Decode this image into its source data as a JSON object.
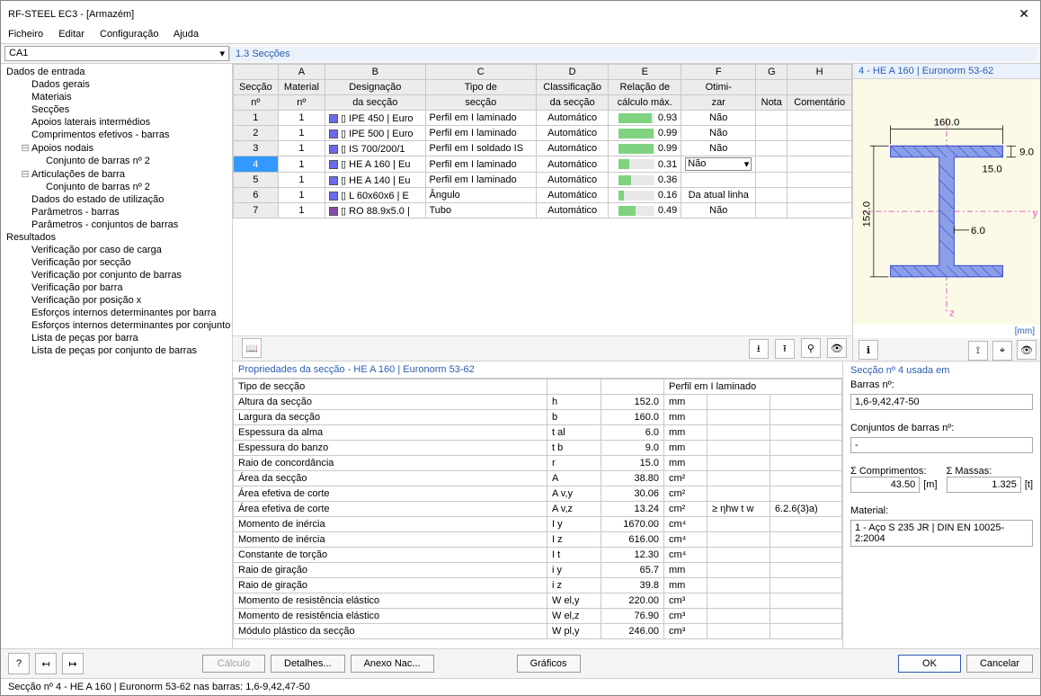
{
  "window": {
    "title": "RF-STEEL EC3 - [Armazém]"
  },
  "menu": [
    "Ficheiro",
    "Editar",
    "Configuração",
    "Ajuda"
  ],
  "case_combo": "CA1",
  "panel_title": "1.3 Secções",
  "tree": [
    {
      "t": "Dados de entrada",
      "lvl": 0
    },
    {
      "t": "Dados gerais",
      "lvl": 1
    },
    {
      "t": "Materiais",
      "lvl": 1
    },
    {
      "t": "Secções",
      "lvl": 1
    },
    {
      "t": "Apoios laterais intermédios",
      "lvl": 1
    },
    {
      "t": "Comprimentos efetivos - barras",
      "lvl": 1
    },
    {
      "t": "Apoios nodais",
      "lvl": 1,
      "exp": "−"
    },
    {
      "t": "Conjunto de barras nº 2",
      "lvl": 2
    },
    {
      "t": "Articulações de barra",
      "lvl": 1,
      "exp": "−"
    },
    {
      "t": "Conjunto de barras nº 2",
      "lvl": 2
    },
    {
      "t": "Dados do estado de utilização",
      "lvl": 1
    },
    {
      "t": "Parâmetros - barras",
      "lvl": 1
    },
    {
      "t": "Parâmetros - conjuntos de barras",
      "lvl": 1
    },
    {
      "t": "Resultados",
      "lvl": 0
    },
    {
      "t": "Verificação por caso de carga",
      "lvl": 1
    },
    {
      "t": "Verificação por secção",
      "lvl": 1
    },
    {
      "t": "Verificação por conjunto de barras",
      "lvl": 1
    },
    {
      "t": "Verificação por barra",
      "lvl": 1
    },
    {
      "t": "Verificação por posição x",
      "lvl": 1
    },
    {
      "t": "Esforços internos determinantes por barra",
      "lvl": 1
    },
    {
      "t": "Esforços internos determinantes por conjunto",
      "lvl": 1
    },
    {
      "t": "Lista de peças por barra",
      "lvl": 1
    },
    {
      "t": "Lista de peças por conjunto de barras",
      "lvl": 1
    }
  ],
  "grid": {
    "col_letters": [
      "A",
      "B",
      "C",
      "D",
      "E",
      "F",
      "G",
      "H"
    ],
    "head1": [
      "Secção",
      "Material",
      "Designação",
      "Tipo de",
      "Classificação",
      "Relação de",
      "Otimi-",
      "",
      ""
    ],
    "head2": [
      "nº",
      "nº",
      "da secção",
      "secção",
      "da secção",
      "cálculo máx.",
      "zar",
      "Nota",
      "Comentário"
    ],
    "rows": [
      {
        "n": 1,
        "mat": 1,
        "sw": "#6a6af0",
        "desig": "IPE 450 | Euro",
        "tipo": "Perfil em I laminado",
        "cls": "Automático",
        "ratio": 0.93,
        "opt": "Não"
      },
      {
        "n": 2,
        "mat": 1,
        "sw": "#6a6af0",
        "desig": "IPE 500 | Euro",
        "tipo": "Perfil em I laminado",
        "cls": "Automático",
        "ratio": 0.99,
        "opt": "Não"
      },
      {
        "n": 3,
        "mat": 1,
        "sw": "#6a6af0",
        "desig": "IS 700/200/1",
        "tipo": "Perfil em I soldado IS",
        "cls": "Automático",
        "ratio": 0.99,
        "opt": "Não"
      },
      {
        "n": 4,
        "mat": 1,
        "sw": "#6a6af0",
        "desig": "HE A 160 | Eu",
        "tipo": "Perfil em I laminado",
        "cls": "Automático",
        "ratio": 0.31,
        "opt": "Não",
        "sel": true,
        "dd": true
      },
      {
        "n": 5,
        "mat": 1,
        "sw": "#6a6af0",
        "desig": "HE A 140 | Eu",
        "tipo": "Perfil em I laminado",
        "cls": "Automático",
        "ratio": 0.36,
        "opt": "Não",
        "hl": true
      },
      {
        "n": 6,
        "mat": 1,
        "sw": "#6a6af0",
        "desig": "L 60x60x6 | E",
        "tipo": "Ângulo",
        "cls": "Automático",
        "ratio": 0.16,
        "opt": "Da atual linha"
      },
      {
        "n": 7,
        "mat": 1,
        "sw": "#8a4aa8",
        "desig": "RO 88.9x5.0 |",
        "tipo": "Tubo",
        "cls": "Automático",
        "ratio": 0.49,
        "opt": "Não"
      }
    ]
  },
  "preview": {
    "title": "4 - HE A 160 | Euronorm 53-62",
    "unit": "[mm]",
    "dims": {
      "b": "160.0",
      "h": "152.0",
      "tf": "9.0",
      "tw": "6.0",
      "r": "15.0"
    },
    "colors": {
      "fill": "#8a9fe8",
      "hatch": "#3a4bd0",
      "axis": "#e460c8",
      "bg": "#fbfae6"
    }
  },
  "props": {
    "title": "Propriedades da secção  -  HE A 160 | Euronorm 53-62",
    "rows": [
      {
        "n": "Tipo de secção",
        "s": "",
        "v": "",
        "u": "",
        "x1": "Perfil em I laminado",
        "x2": "",
        "span": true
      },
      {
        "n": "Altura da secção",
        "s": "h",
        "v": "152.0",
        "u": "mm"
      },
      {
        "n": "Largura da secção",
        "s": "b",
        "v": "160.0",
        "u": "mm"
      },
      {
        "n": "Espessura da alma",
        "s": "t al",
        "v": "6.0",
        "u": "mm"
      },
      {
        "n": "Espessura do banzo",
        "s": "t b",
        "v": "9.0",
        "u": "mm"
      },
      {
        "n": "Raio de concordância",
        "s": "r",
        "v": "15.0",
        "u": "mm"
      },
      {
        "n": "Área da secção",
        "s": "A",
        "v": "38.80",
        "u": "cm²"
      },
      {
        "n": "Área efetiva de corte",
        "s": "A v,y",
        "v": "30.06",
        "u": "cm²"
      },
      {
        "n": "Área efetiva de corte",
        "s": "A v,z",
        "v": "13.24",
        "u": "cm²",
        "x1": "≥ ηhw t w",
        "x2": "6.2.6(3)a)"
      },
      {
        "n": "Momento de inércia",
        "s": "I y",
        "v": "1670.00",
        "u": "cm⁴"
      },
      {
        "n": "Momento de inércia",
        "s": "I z",
        "v": "616.00",
        "u": "cm⁴"
      },
      {
        "n": "Constante de torção",
        "s": "I t",
        "v": "12.30",
        "u": "cm⁴"
      },
      {
        "n": "Raio de giração",
        "s": "i y",
        "v": "65.7",
        "u": "mm"
      },
      {
        "n": "Raio de giração",
        "s": "i z",
        "v": "39.8",
        "u": "mm"
      },
      {
        "n": "Momento de resistência elástico",
        "s": "W el,y",
        "v": "220.00",
        "u": "cm³"
      },
      {
        "n": "Momento de resistência elástico",
        "s": "W el,z",
        "v": "76.90",
        "u": "cm³"
      },
      {
        "n": "Módulo plástico da secção",
        "s": "W pl,y",
        "v": "246.00",
        "u": "cm³"
      }
    ]
  },
  "used": {
    "title": "Secção nº 4 usada em",
    "barras_lab": "Barras nº:",
    "barras": "1,6-9,42,47-50",
    "conj_lab": "Conjuntos de barras nº:",
    "conj": "-",
    "sumL_lab": "Σ Comprimentos:",
    "sumL": "43.50",
    "sumL_u": "[m]",
    "sumM_lab": "Σ Massas:",
    "sumM": "1.325",
    "sumM_u": "[t]",
    "mat_lab": "Material:",
    "mat": "1 - Aço S 235 JR | DIN EN 10025-2:2004"
  },
  "footer": {
    "calc": "Cálculo",
    "det": "Detalhes...",
    "anx": "Anexo Nac...",
    "grf": "Gráficos",
    "ok": "OK",
    "cancel": "Cancelar"
  },
  "status": "Secção nº 4 - HE A 160 | Euronorm 53-62 nas barras: 1,6-9,42,47-50"
}
